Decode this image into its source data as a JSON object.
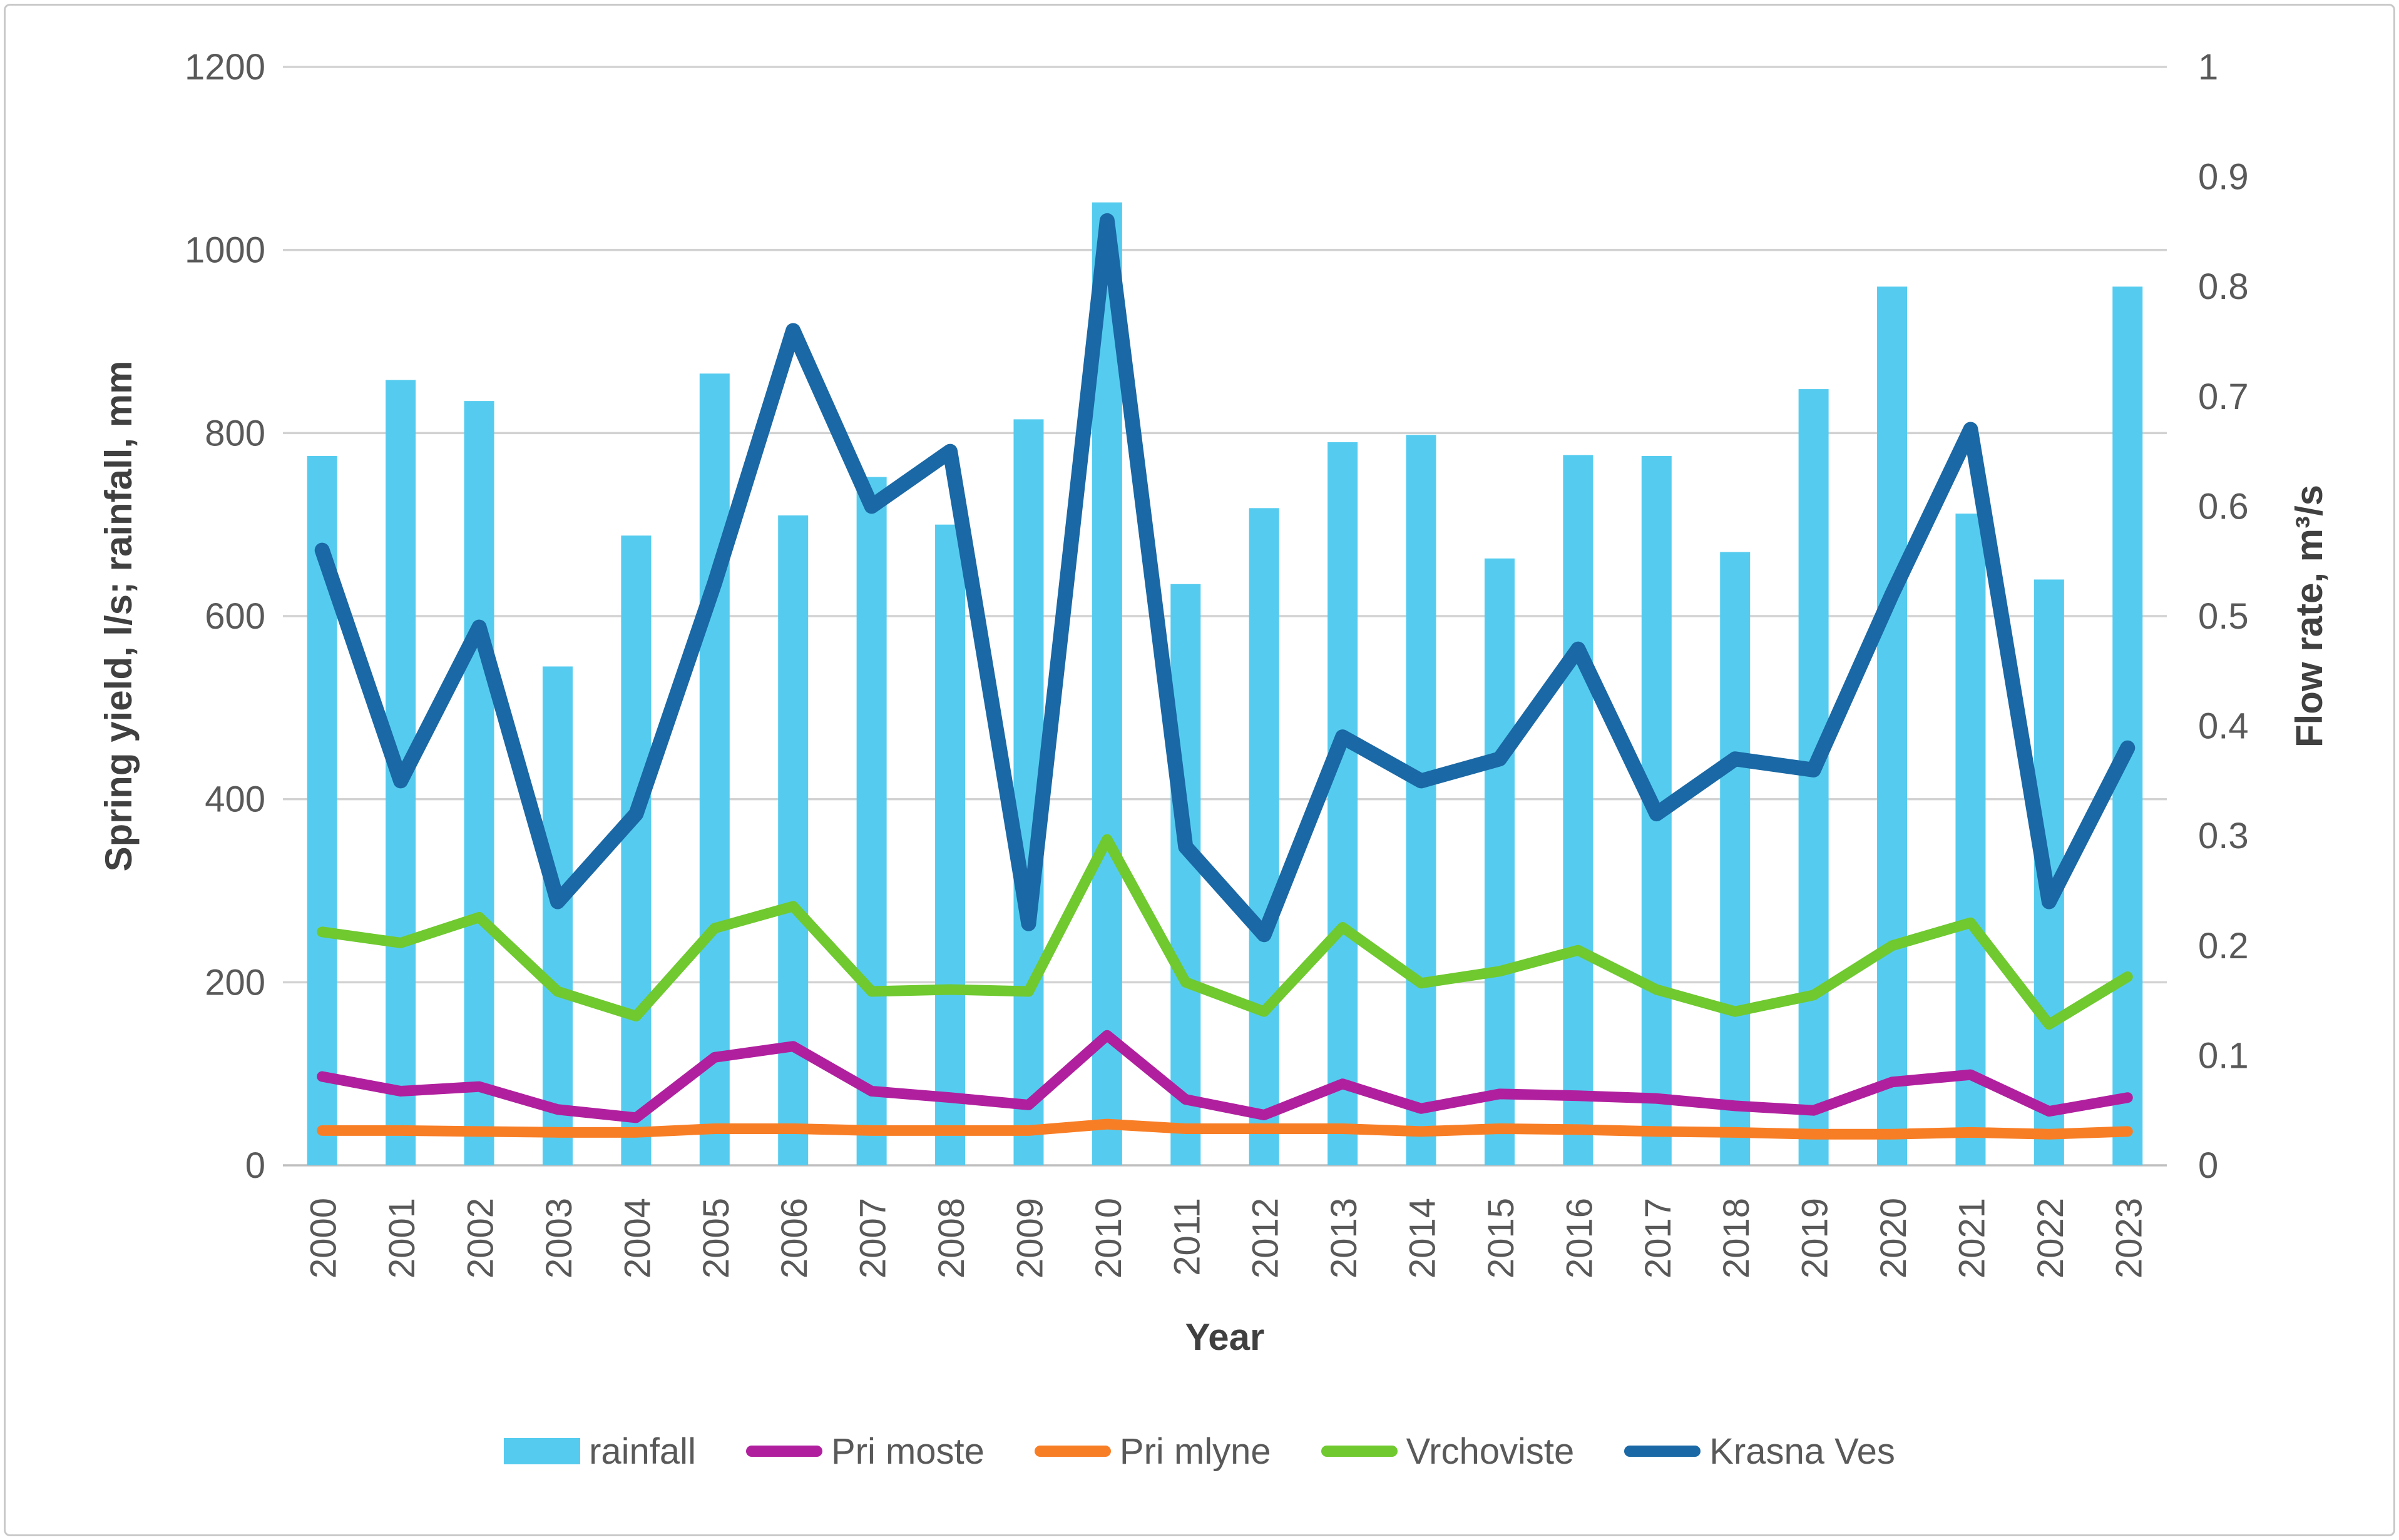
{
  "chart_data": {
    "type": "combo-bar-line",
    "title": "",
    "categories": [
      2000,
      2001,
      2002,
      2003,
      2004,
      2005,
      2006,
      2007,
      2008,
      2009,
      2010,
      2011,
      2012,
      2013,
      2014,
      2015,
      2016,
      2017,
      2018,
      2019,
      2020,
      2021,
      2022,
      2023
    ],
    "x_axis": {
      "label": "Year"
    },
    "left_axis": {
      "label": "Spring yield, l/s; rainfall, mm",
      "min": 0,
      "max": 1200,
      "ticks": [
        0,
        200,
        400,
        600,
        800,
        1000,
        1200
      ]
    },
    "right_axis": {
      "label": "Flow rate, m³/s",
      "min": 0,
      "max": 1,
      "ticks": [
        "0",
        "0.1",
        "0.2",
        "0.3",
        "0.4",
        "0.5",
        "0.6",
        "0.7",
        "0.8",
        "0.9",
        "1"
      ]
    },
    "grid": true,
    "legend_position": "bottom",
    "colors": {
      "gridline": "#D2D2D2",
      "axis_line": "#BFBFBF",
      "tick_text": "#595959",
      "title_text": "#404040"
    },
    "series": [
      {
        "name": "rainfall",
        "type": "bar",
        "axis": "left",
        "unit": "mm",
        "color": "#55CCEF",
        "values": [
          775,
          858,
          835,
          545,
          688,
          865,
          710,
          752,
          700,
          815,
          1052,
          635,
          718,
          790,
          798,
          663,
          776,
          775,
          670,
          848,
          960,
          712,
          640,
          960
        ]
      },
      {
        "name": "Pri moste",
        "type": "line",
        "axis": "left",
        "unit": "l/s",
        "color": "#B0209E",
        "values": [
          97,
          81,
          86,
          61,
          52,
          118,
          130,
          81,
          74,
          66,
          142,
          72,
          55,
          89,
          62,
          78,
          76,
          73,
          65,
          60,
          91,
          99,
          59,
          74
        ]
      },
      {
        "name": "Pri mlyne",
        "type": "line",
        "axis": "left",
        "unit": "l/s",
        "color": "#F87E26",
        "values": [
          38,
          38,
          37,
          36,
          36,
          40,
          40,
          38,
          38,
          38,
          45,
          40,
          40,
          40,
          37,
          40,
          39,
          37,
          36,
          34,
          34,
          36,
          34,
          37
        ]
      },
      {
        "name": "Vrchoviste",
        "type": "line",
        "axis": "left",
        "unit": "l/s",
        "color": "#6FC92F",
        "values": [
          255,
          243,
          271,
          190,
          163,
          259,
          283,
          190,
          192,
          190,
          356,
          200,
          168,
          260,
          199,
          212,
          235,
          192,
          168,
          186,
          240,
          265,
          154,
          206
        ]
      },
      {
        "name": "Krasna Ves",
        "type": "line",
        "axis": "right",
        "unit": "m³/s",
        "color": "#1A68A5",
        "values": [
          0.56,
          0.35,
          0.49,
          0.24,
          0.32,
          0.53,
          0.76,
          0.6,
          0.65,
          0.22,
          0.86,
          0.29,
          0.21,
          0.39,
          0.35,
          0.37,
          0.47,
          0.32,
          0.37,
          0.36,
          0.52,
          0.67,
          0.24,
          0.38
        ]
      }
    ]
  }
}
